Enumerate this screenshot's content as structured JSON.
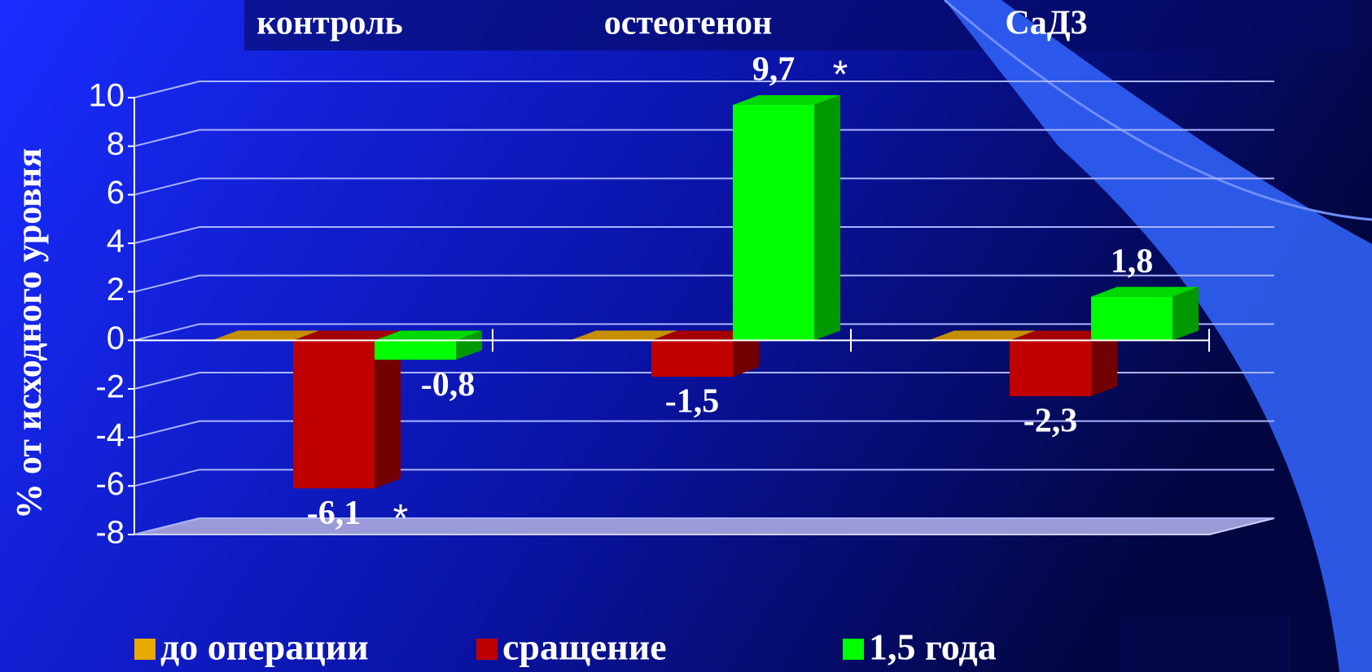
{
  "chart_data": {
    "type": "bar",
    "categories": [
      "контроль",
      "остеогенон",
      "СаД3"
    ],
    "y_label": "% от исходного уровня",
    "ylim": [
      -8,
      10
    ],
    "yticks": [
      -8,
      -6,
      -4,
      -2,
      0,
      2,
      4,
      6,
      8,
      10
    ],
    "grid": true,
    "series": [
      {
        "name": "до операции",
        "color": "#e8a800",
        "values": [
          0,
          0,
          0
        ]
      },
      {
        "name": "сращение",
        "color": "#c00000",
        "values": [
          -6.1,
          -1.5,
          -2.3
        ],
        "value_labels": [
          "-6,1",
          "-1,5",
          "-2,3"
        ]
      },
      {
        "name": "1,5 года",
        "color": "#00ff00",
        "values": [
          -0.8,
          9.7,
          1.8
        ],
        "value_labels": [
          "-0,8",
          "9,7",
          "1,8"
        ]
      }
    ],
    "annotations": [
      "*",
      "*"
    ]
  }
}
